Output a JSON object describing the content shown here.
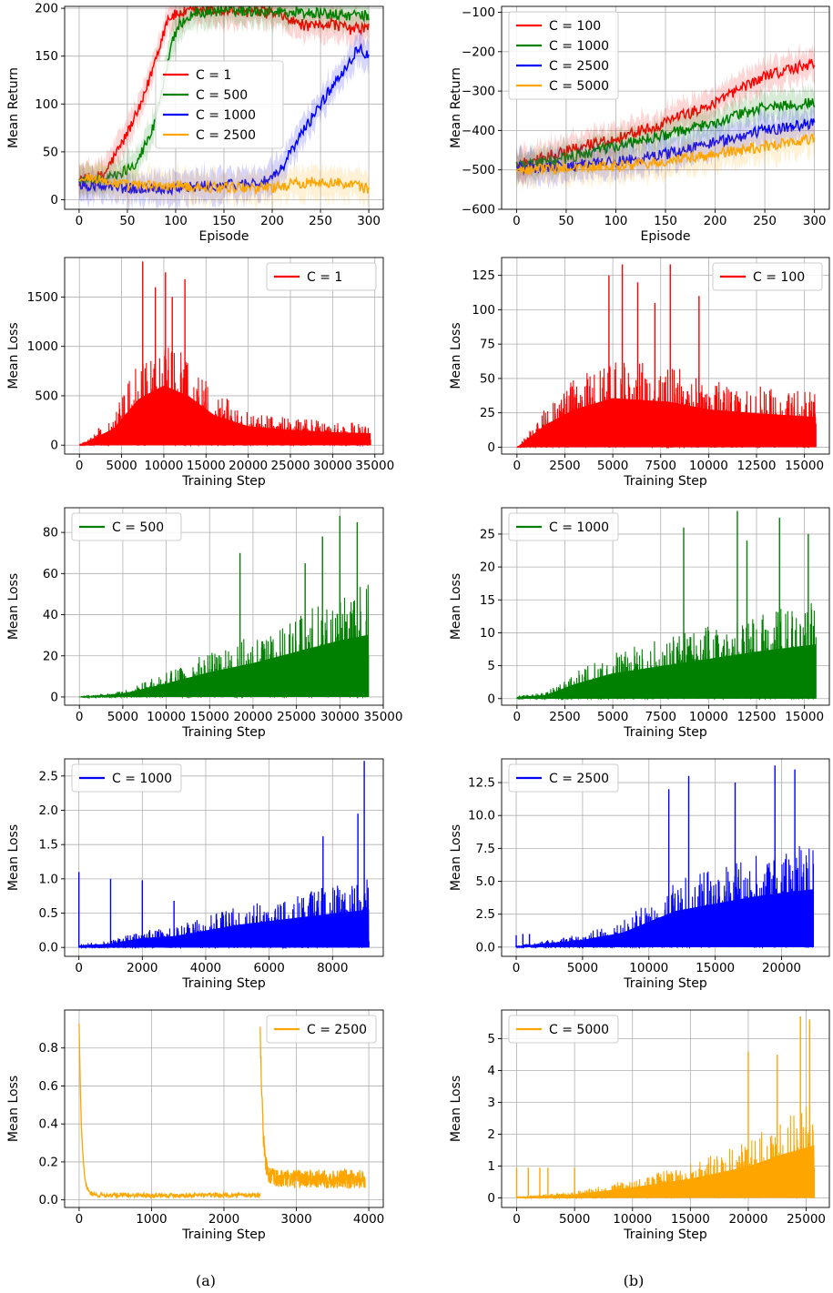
{
  "figure": {
    "captions": [
      "(a)",
      "(b)"
    ]
  },
  "chart_data": [
    {
      "type": "line",
      "xlabel": "Episode",
      "ylabel": "Mean Return",
      "xlim": [
        -15,
        315
      ],
      "ylim": [
        -10,
        202
      ],
      "xticks": [
        0,
        50,
        100,
        150,
        200,
        250,
        300
      ],
      "yticks": [
        0,
        50,
        100,
        150,
        200
      ],
      "grid": true,
      "legend_position": "center",
      "shaded_band": true,
      "series": [
        {
          "name": "C = 1",
          "color": "#ff0000",
          "x": [
            0,
            25,
            45,
            65,
            80,
            92,
            105,
            130,
            160,
            200,
            225,
            240,
            260,
            280,
            300
          ],
          "y": [
            20,
            25,
            60,
            100,
            150,
            190,
            195,
            198,
            197,
            195,
            185,
            180,
            185,
            178,
            180
          ]
        },
        {
          "name": "C = 500",
          "color": "#008000",
          "x": [
            0,
            40,
            60,
            75,
            85,
            95,
            105,
            120,
            150,
            200,
            240,
            270,
            300
          ],
          "y": [
            18,
            25,
            40,
            70,
            110,
            160,
            185,
            195,
            198,
            197,
            195,
            193,
            192
          ]
        },
        {
          "name": "C = 1000",
          "color": "#0000ff",
          "x": [
            0,
            50,
            100,
            150,
            190,
            205,
            225,
            250,
            270,
            290,
            300
          ],
          "y": [
            15,
            12,
            12,
            15,
            18,
            25,
            60,
            100,
            130,
            160,
            150
          ]
        },
        {
          "name": "C = 2500",
          "color": "#ffa500",
          "x": [
            0,
            50,
            100,
            150,
            200,
            250,
            300
          ],
          "y": [
            25,
            15,
            14,
            13,
            13,
            20,
            12
          ]
        }
      ]
    },
    {
      "type": "line",
      "xlabel": "Episode",
      "ylabel": "Mean Return",
      "xlim": [
        -15,
        315
      ],
      "ylim": [
        -600,
        -85
      ],
      "xticks": [
        0,
        50,
        100,
        150,
        200,
        250,
        300
      ],
      "yticks": [
        -600,
        -500,
        -400,
        -300,
        -200,
        -100
      ],
      "grid": true,
      "legend_position": "upper left",
      "shaded_band": true,
      "series": [
        {
          "name": "C = 100",
          "color": "#ff0000",
          "x": [
            0,
            50,
            100,
            150,
            200,
            250,
            300
          ],
          "y": [
            -490,
            -450,
            -420,
            -380,
            -330,
            -260,
            -230
          ]
        },
        {
          "name": "C = 1000",
          "color": "#008000",
          "x": [
            0,
            50,
            100,
            150,
            200,
            250,
            300
          ],
          "y": [
            -490,
            -470,
            -440,
            -410,
            -380,
            -340,
            -330
          ]
        },
        {
          "name": "C = 2500",
          "color": "#0000ff",
          "x": [
            0,
            50,
            100,
            150,
            200,
            250,
            300
          ],
          "y": [
            -495,
            -490,
            -480,
            -460,
            -430,
            -400,
            -380
          ]
        },
        {
          "name": "C = 5000",
          "color": "#ffa500",
          "x": [
            0,
            50,
            100,
            150,
            200,
            250,
            300
          ],
          "y": [
            -500,
            -495,
            -490,
            -480,
            -460,
            -440,
            -420
          ]
        }
      ]
    },
    {
      "type": "line",
      "xlabel": "Training Step",
      "ylabel": "Mean Loss",
      "xlim": [
        -1750,
        36000
      ],
      "ylim": [
        -90,
        1900
      ],
      "xticks": [
        0,
        5000,
        10000,
        15000,
        20000,
        25000,
        30000,
        35000
      ],
      "yticks": [
        0,
        500,
        1000,
        1500
      ],
      "grid": true,
      "legend_position": "upper right",
      "series": [
        {
          "name": "C = 1",
          "color": "#ff0000",
          "x_max": 34500,
          "shape": "rise-fall",
          "peak_x": 10000,
          "noise_envelope": [
            [
              0,
              0
            ],
            [
              4000,
              300
            ],
            [
              7000,
              850
            ],
            [
              10000,
              1100
            ],
            [
              13000,
              900
            ],
            [
              16000,
              550
            ],
            [
              20000,
              350
            ],
            [
              25000,
              280
            ],
            [
              30000,
              240
            ],
            [
              34500,
              220
            ]
          ],
          "spikes": [
            [
              7500,
              1860
            ],
            [
              10200,
              1750
            ],
            [
              12500,
              1680
            ],
            [
              9000,
              1600
            ],
            [
              11000,
              1500
            ]
          ]
        }
      ]
    },
    {
      "type": "line",
      "xlabel": "Training Step",
      "ylabel": "Mean Loss",
      "xlim": [
        -800,
        16300
      ],
      "ylim": [
        -5,
        138
      ],
      "xticks": [
        0,
        2500,
        5000,
        7500,
        10000,
        12500,
        15000
      ],
      "yticks": [
        0,
        25,
        50,
        75,
        100,
        125
      ],
      "grid": true,
      "legend_position": "upper right",
      "series": [
        {
          "name": "C = 100",
          "color": "#ff0000",
          "x_max": 15600,
          "noise_envelope": [
            [
              0,
              0
            ],
            [
              1500,
              30
            ],
            [
              3000,
              50
            ],
            [
              5000,
              65
            ],
            [
              8000,
              60
            ],
            [
              10000,
              50
            ],
            [
              12500,
              45
            ],
            [
              15600,
              40
            ]
          ],
          "spikes": [
            [
              5500,
              133
            ],
            [
              8000,
              133
            ],
            [
              4800,
              125
            ],
            [
              6300,
              120
            ],
            [
              9500,
              110
            ],
            [
              7200,
              105
            ]
          ]
        }
      ]
    },
    {
      "type": "line",
      "xlabel": "Training Step",
      "ylabel": "Mean Loss",
      "xlim": [
        -1700,
        35000
      ],
      "ylim": [
        -4,
        92
      ],
      "xticks": [
        0,
        5000,
        10000,
        15000,
        20000,
        25000,
        30000,
        35000
      ],
      "yticks": [
        0,
        20,
        40,
        60,
        80
      ],
      "grid": true,
      "legend_position": "upper left",
      "series": [
        {
          "name": "C = 500",
          "color": "#008000",
          "x_max": 33300,
          "noise_envelope": [
            [
              0,
              0
            ],
            [
              5000,
              3
            ],
            [
              10000,
              12
            ],
            [
              15000,
              22
            ],
            [
              20000,
              30
            ],
            [
              25000,
              40
            ],
            [
              30000,
              50
            ],
            [
              33300,
              55
            ]
          ],
          "spikes": [
            [
              30000,
              88
            ],
            [
              32000,
              85
            ],
            [
              28000,
              78
            ],
            [
              18500,
              70
            ],
            [
              26000,
              65
            ]
          ]
        }
      ]
    },
    {
      "type": "line",
      "xlabel": "Training Step",
      "ylabel": "Mean Loss",
      "xlim": [
        -800,
        16300
      ],
      "ylim": [
        -1,
        29
      ],
      "xticks": [
        0,
        2500,
        5000,
        7500,
        10000,
        12500,
        15000
      ],
      "yticks": [
        0,
        5,
        10,
        15,
        20,
        25
      ],
      "grid": true,
      "legend_position": "upper left",
      "series": [
        {
          "name": "C = 1000",
          "color": "#008000",
          "x_max": 15600,
          "noise_envelope": [
            [
              0,
              0.5
            ],
            [
              1500,
              1
            ],
            [
              3000,
              4
            ],
            [
              5000,
              7
            ],
            [
              7500,
              9
            ],
            [
              10000,
              11
            ],
            [
              12500,
              13
            ],
            [
              15600,
              15
            ]
          ],
          "spikes": [
            [
              11500,
              28.5
            ],
            [
              13700,
              27.5
            ],
            [
              8700,
              26
            ],
            [
              15200,
              25
            ],
            [
              12000,
              24
            ]
          ]
        }
      ]
    },
    {
      "type": "line",
      "xlabel": "Training Step",
      "ylabel": "Mean Loss",
      "xlim": [
        -450,
        9600
      ],
      "ylim": [
        -0.13,
        2.75
      ],
      "xticks": [
        0,
        2000,
        4000,
        6000,
        8000
      ],
      "yticks": [
        0.0,
        0.5,
        1.0,
        1.5,
        2.0,
        2.5
      ],
      "grid": true,
      "legend_position": "upper left",
      "series": [
        {
          "name": "C = 1000",
          "color": "#0000ff",
          "x_max": 9150,
          "noise_envelope": [
            [
              0,
              0.05
            ],
            [
              1000,
              0.1
            ],
            [
              2000,
              0.25
            ],
            [
              3000,
              0.3
            ],
            [
              4000,
              0.45
            ],
            [
              5000,
              0.6
            ],
            [
              6000,
              0.7
            ],
            [
              7000,
              0.8
            ],
            [
              8000,
              0.9
            ],
            [
              9150,
              1.0
            ]
          ],
          "spikes": [
            [
              0,
              1.1
            ],
            [
              1000,
              1.0
            ],
            [
              2000,
              0.98
            ],
            [
              3000,
              0.68
            ],
            [
              9000,
              2.72
            ],
            [
              8800,
              1.95
            ],
            [
              7700,
              1.62
            ]
          ]
        }
      ]
    },
    {
      "type": "line",
      "xlabel": "Training Step",
      "ylabel": "Mean Loss",
      "xlim": [
        -1100,
        23600
      ],
      "ylim": [
        -0.7,
        14.3
      ],
      "xticks": [
        0,
        5000,
        10000,
        15000,
        20000
      ],
      "yticks": [
        0.0,
        2.5,
        5.0,
        7.5,
        10.0,
        12.5
      ],
      "grid": true,
      "legend_position": "upper left",
      "series": [
        {
          "name": "C = 2500",
          "color": "#0000ff",
          "x_max": 22400,
          "noise_envelope": [
            [
              0,
              0.1
            ],
            [
              5000,
              1
            ],
            [
              8000,
              2
            ],
            [
              10000,
              3.5
            ],
            [
              12000,
              5
            ],
            [
              15000,
              6
            ],
            [
              18000,
              7
            ],
            [
              20000,
              7.5
            ],
            [
              22400,
              8
            ]
          ],
          "spikes": [
            [
              19500,
              13.8
            ],
            [
              21000,
              13.5
            ],
            [
              13000,
              13.0
            ],
            [
              16500,
              12.5
            ],
            [
              11500,
              12
            ],
            [
              0,
              0.9
            ],
            [
              500,
              1.0
            ],
            [
              1000,
              1.0
            ]
          ]
        }
      ]
    },
    {
      "type": "line",
      "xlabel": "Training Step",
      "ylabel": "Mean Loss",
      "xlim": [
        -200,
        4200
      ],
      "ylim": [
        -0.04,
        1.0
      ],
      "xticks": [
        0,
        1000,
        2000,
        3000,
        4000
      ],
      "yticks": [
        0.0,
        0.2,
        0.4,
        0.6,
        0.8
      ],
      "grid": true,
      "legend_position": "upper right",
      "series": [
        {
          "name": "C = 2500",
          "color": "#ffa500",
          "x_max": 3950,
          "segments": [
            {
              "start": 0,
              "end": 2500,
              "peak": 0.93,
              "base": 0.025,
              "noise": 0.012
            },
            {
              "start": 2500,
              "end": 3950,
              "peak": 0.95,
              "base": 0.11,
              "noise": 0.05
            }
          ]
        }
      ]
    },
    {
      "type": "line",
      "xlabel": "Training Step",
      "ylabel": "Mean Loss",
      "xlim": [
        -1300,
        27000
      ],
      "ylim": [
        -0.3,
        5.9
      ],
      "xticks": [
        0,
        5000,
        10000,
        15000,
        20000,
        25000
      ],
      "yticks": [
        0,
        1,
        2,
        3,
        4,
        5
      ],
      "grid": true,
      "legend_position": "upper left",
      "series": [
        {
          "name": "C = 5000",
          "color": "#ffa500",
          "x_max": 25700,
          "noise_envelope": [
            [
              0,
              0.05
            ],
            [
              5000,
              0.2
            ],
            [
              10000,
              0.6
            ],
            [
              15000,
              1.1
            ],
            [
              20000,
              1.8
            ],
            [
              23000,
              2.5
            ],
            [
              25700,
              3.0
            ]
          ],
          "spikes": [
            [
              24500,
              5.7
            ],
            [
              25300,
              5.6
            ],
            [
              20000,
              4.6
            ],
            [
              22500,
              4.5
            ],
            [
              0,
              0.95
            ],
            [
              1000,
              0.95
            ],
            [
              2000,
              0.95
            ],
            [
              2700,
              0.95
            ],
            [
              5000,
              0.95
            ]
          ]
        }
      ]
    }
  ]
}
